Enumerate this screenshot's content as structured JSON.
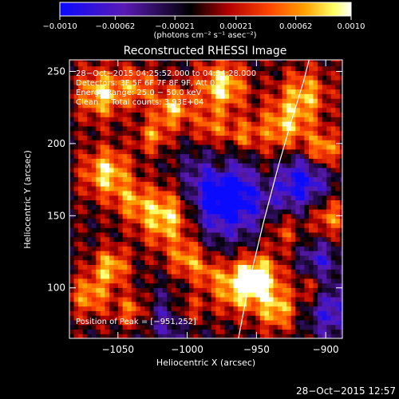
{
  "chart_data": {
    "type": "heatmap",
    "title": "Reconstructed RHESSI Image",
    "xlabel": "Heliocentric X (arcsec)",
    "ylabel": "Heliocentric Y (arcsec)",
    "xlim": [
      -1085,
      -888
    ],
    "ylim": [
      65,
      258
    ],
    "x_ticks": [
      {
        "value": -1050,
        "label": "−1050"
      },
      {
        "value": -1000,
        "label": "−1000"
      },
      {
        "value": -950,
        "label": "−950"
      },
      {
        "value": -900,
        "label": "−900"
      }
    ],
    "y_ticks": [
      {
        "value": 100,
        "label": "100"
      },
      {
        "value": 150,
        "label": "150"
      },
      {
        "value": 200,
        "label": "200"
      },
      {
        "value": 250,
        "label": "250"
      }
    ],
    "colorbar": {
      "range": [
        -0.001,
        0.001
      ],
      "tick_values": [
        -0.001,
        -0.00062,
        -0.00021,
        0.00021,
        0.00062,
        0.001
      ],
      "tick_labels": [
        "−0.0010",
        "−0.00062",
        "−0.00021",
        "0.00021",
        "0.00062",
        "0.0010"
      ],
      "units_label": "(photons cm⁻² s⁻¹ asec⁻²)",
      "colors": [
        "#0a0aff",
        "#5a1ab4",
        "#000000",
        "#b40000",
        "#ff4600",
        "#ffa000",
        "#ffff64",
        "#ffffff"
      ]
    },
    "annotations": [
      "28−Oct−2015 04:25:52.000 to 04:34:28.000",
      "Detectors: 3F 5F 6F 7F 8F 9F, Att 0",
      "Energy Range: 25.0 − 50.0 keV",
      "Clean     Total counts: 3.93E+04"
    ],
    "peak_label": "Position of Peak = [−951,252]",
    "limb_curve": [
      [
        -963,
        65
      ],
      [
        -955,
        105
      ],
      [
        -945,
        145
      ],
      [
        -934,
        185
      ],
      [
        -925,
        215
      ],
      [
        -916,
        243
      ],
      [
        -912,
        258
      ]
    ],
    "grid": false
  },
  "footer": {
    "timestamp": "28−Oct−2015 12:57"
  }
}
